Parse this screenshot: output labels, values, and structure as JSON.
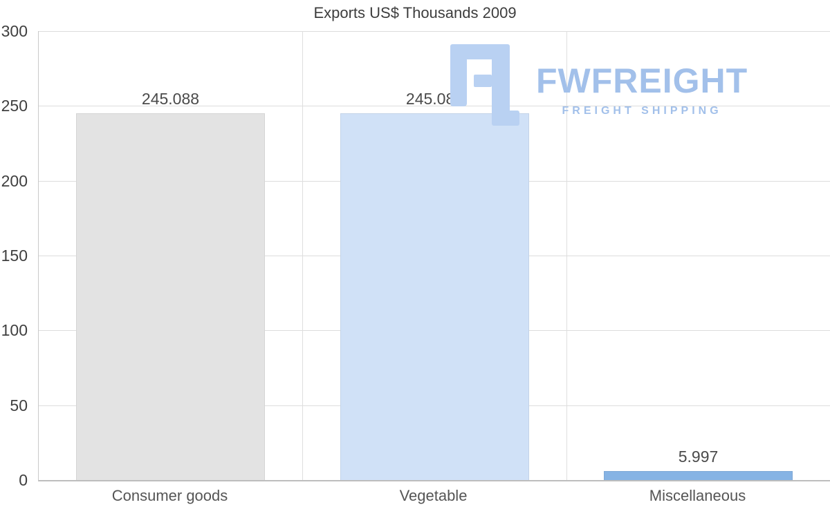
{
  "title": "Exports US$ Thousands 2009",
  "watermark": {
    "brand": "FWFREIGHT",
    "tagline": "FREIGHT SHIPPING",
    "color": "#a2c0ea",
    "icon_color": "#b9d1f2",
    "icon_name": "fwfreight-logo-icon"
  },
  "chart_data": {
    "type": "bar",
    "title": "Exports US$ Thousands 2009",
    "categories": [
      "Consumer goods",
      "Vegetable",
      "Miscellaneous"
    ],
    "values": [
      245.088,
      245.088,
      5.997
    ],
    "value_labels": [
      "245.088",
      "245.088",
      "5.997"
    ],
    "bar_colors": [
      "#e3e3e3",
      "#d0e1f7",
      "#86b3e4"
    ],
    "xlabel": "",
    "ylabel": "",
    "ylim": [
      0,
      300
    ],
    "yticks": [
      0,
      50,
      100,
      150,
      200,
      250,
      300
    ],
    "grid": true,
    "legend": false,
    "background": "#ffffff",
    "gridline_color": "#dcdcdc"
  }
}
